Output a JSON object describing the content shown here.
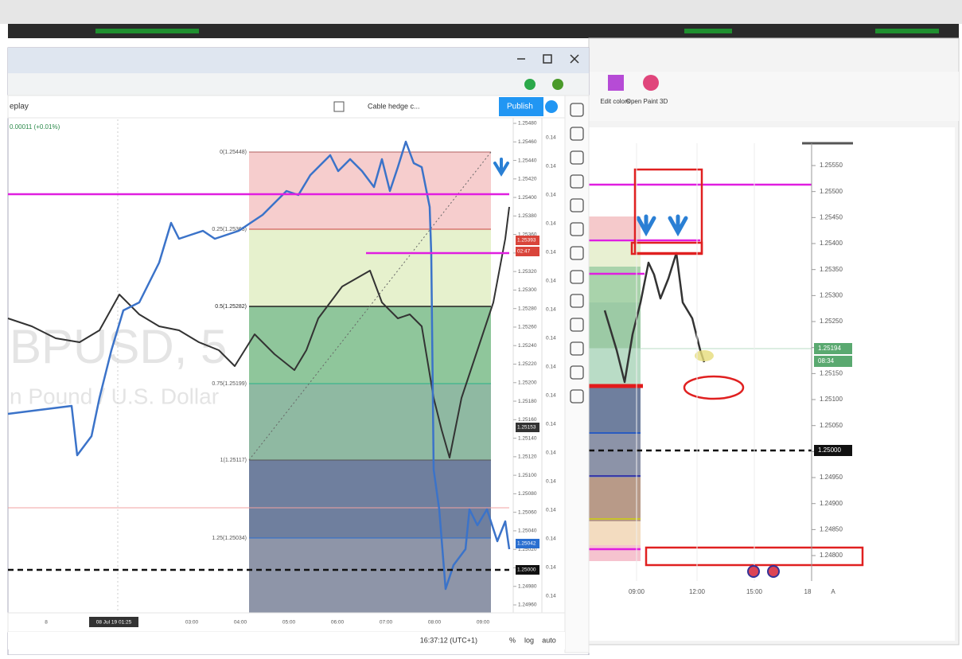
{
  "left_window": {
    "toolbar": {
      "replay": "eplay",
      "layout": "Cable hedge c...",
      "publish": "Publish"
    },
    "change": "0.00011 (+0.01%)",
    "watermark": [
      "BPUSD, 5",
      "n Pound / U.S. Dollar"
    ],
    "fib_levels": [
      "0(1.25448)",
      "0.25(1.25363)",
      "0.5(1.25282)",
      "0.75(1.25199)",
      "1(1.25117)",
      "1.25(1.25034)"
    ],
    "price_axis": [
      "1.25480",
      "1.25460",
      "1.25440",
      "1.25420",
      "1.25400",
      "1.25380",
      "1.25360",
      "1.25340",
      "1.25320",
      "1.25300",
      "1.25280",
      "1.25260",
      "1.25240",
      "1.25220",
      "1.25200",
      "1.25180",
      "1.25160",
      "1.25140",
      "1.25120",
      "1.25100",
      "1.25080",
      "1.25060",
      "1.25040",
      "1.25020",
      "1.25000",
      "1.24980",
      "1.24960"
    ],
    "secondary_axis": [
      "0.14",
      "0.14",
      "0.14",
      "0.14",
      "0.14",
      "0.14",
      "0.14",
      "0.14",
      "0.14",
      "0.14",
      "0.14",
      "0.14",
      "0.14",
      "0.14",
      "0.14",
      "0.14",
      "0.14",
      "0.14"
    ],
    "price_tags": [
      "1.25393",
      "02:47",
      "1.25153",
      "1.25042",
      "1.25000"
    ],
    "time_axis": [
      "8",
      "08 Jul 19  01:25",
      "03:00",
      "04:00",
      "05:00",
      "06:00",
      "07:00",
      "08:00",
      "09:00"
    ],
    "status": [
      "16:37:12 (UTC+1)",
      "%",
      "log",
      "auto"
    ]
  },
  "right_window": {
    "ribbon": [
      "Edit colors",
      "Open Paint 3D"
    ],
    "price_axis": [
      "1.25550",
      "1.25500",
      "1.25450",
      "1.25400",
      "1.25350",
      "1.25300",
      "1.25250",
      "1.25200",
      "1.25150",
      "1.25100",
      "1.25050",
      "1.25000",
      "1.24950",
      "1.24900",
      "1.24850",
      "1.24800"
    ],
    "price_tags": [
      "1.25194",
      "08:34",
      "1.25000"
    ],
    "time_axis": [
      "09:00",
      "12:00",
      "15:00",
      "18",
      "A"
    ]
  }
}
